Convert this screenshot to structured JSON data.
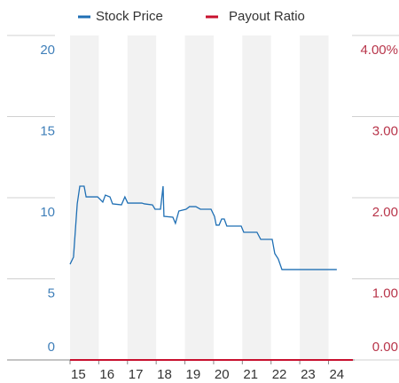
{
  "chart_data": {
    "type": "line",
    "legend": "top",
    "band_color": "#f2f2f2",
    "grid": true,
    "xlim": [
      15,
      24.85
    ],
    "xticks": [
      15,
      16,
      17,
      18,
      19,
      20,
      21,
      22,
      23,
      24
    ],
    "ylim": [
      0,
      20
    ],
    "yticks": [
      0,
      5,
      10,
      15,
      20
    ],
    "y2lim": [
      0,
      4
    ],
    "y2ticks": [
      {
        "value": 0,
        "label": "0.00"
      },
      {
        "value": 1,
        "label": "1.00"
      },
      {
        "value": 2,
        "label": "2.00"
      },
      {
        "value": 3,
        "label": "3.00"
      },
      {
        "value": 4,
        "label": "4.00%"
      }
    ],
    "series": [
      {
        "name": "Stock Price",
        "color": "#1f6fb4",
        "x": [
          15.0,
          15.12,
          15.25,
          15.34,
          15.49,
          15.56,
          15.96,
          16.14,
          16.23,
          16.39,
          16.48,
          16.79,
          16.91,
          17.01,
          17.5,
          17.59,
          17.87,
          17.96,
          18.15,
          18.24,
          18.27,
          18.58,
          18.67,
          18.79,
          19.04,
          19.16,
          19.38,
          19.54,
          19.91,
          20.03,
          20.09,
          20.19,
          20.28,
          20.37,
          20.46,
          20.96,
          21.05,
          21.51,
          21.64,
          22.04,
          22.13,
          22.25,
          22.38,
          24.29
        ],
        "values": [
          5.9,
          6.34,
          9.62,
          10.71,
          10.71,
          10.05,
          10.05,
          9.73,
          10.16,
          10.05,
          9.62,
          9.56,
          10.05,
          9.67,
          9.67,
          9.62,
          9.56,
          9.29,
          9.29,
          10.71,
          8.85,
          8.8,
          8.42,
          9.18,
          9.29,
          9.45,
          9.45,
          9.29,
          9.29,
          8.85,
          8.31,
          8.31,
          8.69,
          8.69,
          8.25,
          8.25,
          7.87,
          7.87,
          7.43,
          7.43,
          6.56,
          6.23,
          5.57,
          5.57
        ]
      },
      {
        "name": "Payout Ratio",
        "color": "#c8102e",
        "axis": "y2",
        "x": [
          15,
          24.85
        ],
        "values": [
          0,
          0
        ]
      }
    ]
  }
}
